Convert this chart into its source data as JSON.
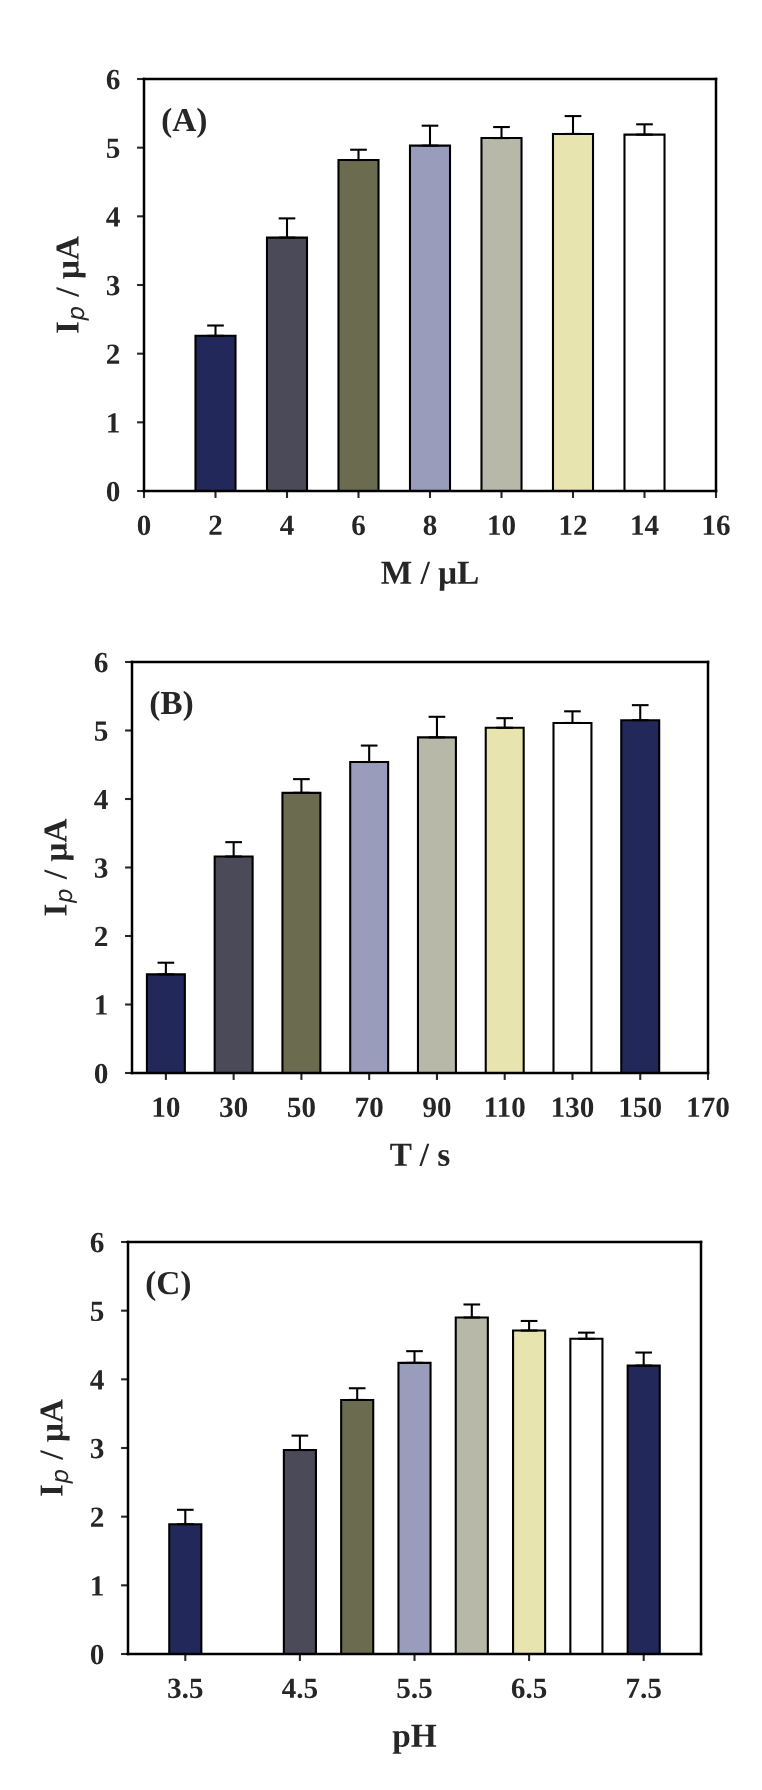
{
  "chart_data": [
    {
      "type": "bar",
      "annotations": [
        "(A)"
      ],
      "xlabel": "M / μL",
      "ylabel": "I$_{p}$ / μA",
      "x": [
        2,
        4,
        6,
        8,
        10,
        12,
        14
      ],
      "values": [
        2.26,
        3.69,
        4.82,
        5.03,
        5.14,
        5.2,
        5.19
      ],
      "errors": [
        0.15,
        0.28,
        0.15,
        0.29,
        0.16,
        0.26,
        0.15
      ],
      "colors": [
        "#23285a",
        "#4a4a58",
        "#6b6b50",
        "#9a9cbc",
        "#b8b8a8",
        "#e8e4b0",
        "#ffffff"
      ],
      "xlim": [
        0,
        16
      ],
      "xticks": [
        0,
        2,
        4,
        6,
        8,
        10,
        12,
        14,
        16
      ],
      "ylim": [
        0,
        6
      ],
      "yticks": [
        0,
        1,
        2,
        3,
        4,
        5,
        6
      ],
      "grid": false,
      "legend": false
    },
    {
      "type": "bar",
      "annotations": [
        "(B)"
      ],
      "xlabel": "T / s",
      "ylabel": "I$_{p}$ / μA",
      "x": [
        10,
        30,
        50,
        70,
        90,
        110,
        130,
        150
      ],
      "values": [
        1.44,
        3.16,
        4.09,
        4.54,
        4.9,
        5.04,
        5.11,
        5.15
      ],
      "errors": [
        0.17,
        0.21,
        0.2,
        0.24,
        0.3,
        0.14,
        0.17,
        0.22
      ],
      "colors": [
        "#23285a",
        "#4a4a58",
        "#6b6b50",
        "#9a9cbc",
        "#b8b8a8",
        "#e8e4b0",
        "#ffffff",
        "#23285a"
      ],
      "xlim": [
        0,
        170
      ],
      "xticks": [
        10,
        30,
        50,
        70,
        90,
        110,
        130,
        150,
        170
      ],
      "ylim": [
        0,
        6
      ],
      "yticks": [
        0,
        1,
        2,
        3,
        4,
        5,
        6
      ],
      "grid": false,
      "legend": false
    },
    {
      "type": "bar",
      "annotations": [
        "(C)"
      ],
      "xlabel": "pH",
      "ylabel": "I$_{p}$ / μA",
      "x": [
        3.5,
        4.5,
        5,
        5.5,
        6,
        6.5,
        7,
        7.5
      ],
      "values": [
        1.89,
        2.97,
        3.7,
        4.24,
        4.9,
        4.71,
        4.59,
        4.2
      ],
      "errors": [
        0.21,
        0.21,
        0.17,
        0.17,
        0.19,
        0.14,
        0.09,
        0.19
      ],
      "colors": [
        "#23285a",
        "#4a4a58",
        "#6b6b50",
        "#9a9cbc",
        "#b8b8a8",
        "#e8e4b0",
        "#ffffff",
        "#23285a"
      ],
      "xlim": [
        3,
        8
      ],
      "xticks": [
        3.5,
        4.5,
        5.5,
        6.5,
        7.5
      ],
      "ylim": [
        0,
        6
      ],
      "yticks": [
        0,
        1,
        2,
        3,
        4,
        5,
        6
      ],
      "grid": false,
      "legend": false
    }
  ]
}
